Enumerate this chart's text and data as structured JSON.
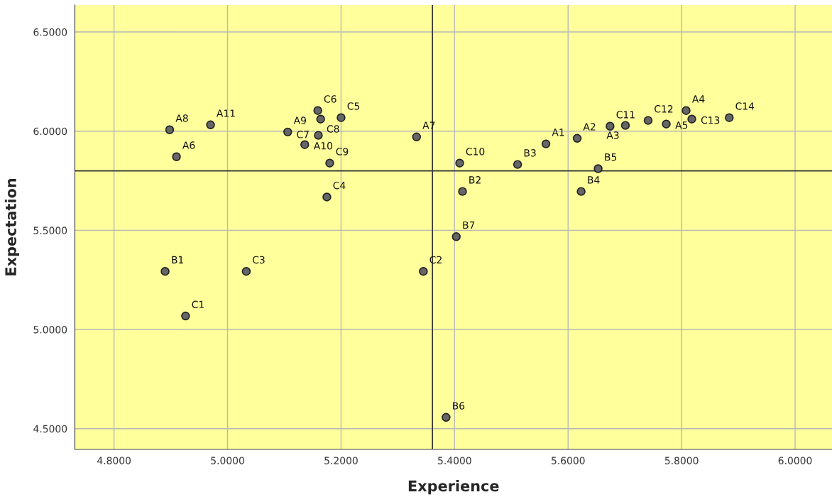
{
  "chart_data": {
    "type": "scatter",
    "xlabel": "Experience",
    "ylabel": "Expectation",
    "xlim": [
      4.731,
      6.065
    ],
    "ylim": [
      4.396,
      6.636
    ],
    "xticks": [
      {
        "value": 4.8,
        "label": "4.8000"
      },
      {
        "value": 5.0,
        "label": "5.0000"
      },
      {
        "value": 5.2,
        "label": "5.2000"
      },
      {
        "value": 5.4,
        "label": "5.4000"
      },
      {
        "value": 5.6,
        "label": "5.6000"
      },
      {
        "value": 5.8,
        "label": "5.8000"
      },
      {
        "value": 6.0,
        "label": "6.0000"
      }
    ],
    "yticks": [
      {
        "value": 4.5,
        "label": "4.5000"
      },
      {
        "value": 5.0,
        "label": "5.0000"
      },
      {
        "value": 5.5,
        "label": "5.5000"
      },
      {
        "value": 6.0,
        "label": "6.0000"
      },
      {
        "value": 6.5,
        "label": "6.5000"
      }
    ],
    "grid": true,
    "marker": "circle",
    "legend": false,
    "series": [
      {
        "color": "#666666",
        "x": [
          4.898,
          4.91,
          4.97,
          4.89,
          4.926,
          5.033,
          5.106,
          5.136,
          5.159,
          5.164,
          5.2,
          5.16,
          5.18,
          5.175,
          5.333,
          5.345,
          5.385,
          5.403,
          5.414,
          5.409,
          5.511,
          5.561,
          5.616,
          5.623,
          5.653,
          5.674,
          5.701,
          5.741,
          5.773,
          5.808,
          5.818,
          5.884
        ],
        "values": [
          6.007,
          5.871,
          6.032,
          5.293,
          5.068,
          5.293,
          5.996,
          5.932,
          6.104,
          6.061,
          6.068,
          5.979,
          5.839,
          5.668,
          5.971,
          5.293,
          4.557,
          5.468,
          5.696,
          5.839,
          5.832,
          5.936,
          5.964,
          5.696,
          5.811,
          6.025,
          6.029,
          6.054,
          6.036,
          6.104,
          6.061,
          6.068
        ]
      }
    ],
    "annotations": [
      {
        "text": "A8",
        "x": 4.898,
        "y": 6.007
      },
      {
        "text": "A6",
        "x": 4.91,
        "y": 5.871
      },
      {
        "text": "A11",
        "x": 4.97,
        "y": 6.032
      },
      {
        "text": "B1",
        "x": 4.89,
        "y": 5.293
      },
      {
        "text": "C1",
        "x": 4.926,
        "y": 5.068
      },
      {
        "text": "C3",
        "x": 5.033,
        "y": 5.293
      },
      {
        "text": "A9",
        "x": 5.106,
        "y": 5.996
      },
      {
        "text": "A10",
        "x": 5.136,
        "y": 5.932
      },
      {
        "text": "C6",
        "x": 5.159,
        "y": 6.104
      },
      {
        "text": "C8",
        "x": 5.164,
        "y": 6.061
      },
      {
        "text": "C5",
        "x": 5.2,
        "y": 6.068
      },
      {
        "text": "C7",
        "x": 5.16,
        "y": 5.979
      },
      {
        "text": "C9",
        "x": 5.18,
        "y": 5.839
      },
      {
        "text": "C4",
        "x": 5.175,
        "y": 5.668
      },
      {
        "text": "A7",
        "x": 5.333,
        "y": 5.971
      },
      {
        "text": "C2",
        "x": 5.345,
        "y": 5.293
      },
      {
        "text": "B6",
        "x": 5.385,
        "y": 4.557
      },
      {
        "text": "B7",
        "x": 5.403,
        "y": 5.468
      },
      {
        "text": "B2",
        "x": 5.414,
        "y": 5.696
      },
      {
        "text": "C10",
        "x": 5.409,
        "y": 5.839
      },
      {
        "text": "B3",
        "x": 5.511,
        "y": 5.832
      },
      {
        "text": "A1",
        "x": 5.561,
        "y": 5.936
      },
      {
        "text": "A2",
        "x": 5.616,
        "y": 5.964
      },
      {
        "text": "B4",
        "x": 5.623,
        "y": 5.696
      },
      {
        "text": "B5",
        "x": 5.653,
        "y": 5.811
      },
      {
        "text": "C11",
        "x": 5.674,
        "y": 6.025
      },
      {
        "text": "A3",
        "x": 5.701,
        "y": 6.029
      },
      {
        "text": "C12",
        "x": 5.741,
        "y": 6.054
      },
      {
        "text": "A5",
        "x": 5.773,
        "y": 6.036
      },
      {
        "text": "A4",
        "x": 5.808,
        "y": 6.104
      },
      {
        "text": "C13",
        "x": 5.818,
        "y": 6.061
      },
      {
        "text": "C14",
        "x": 5.884,
        "y": 6.068
      }
    ],
    "ref_lines": [
      {
        "axis": "x",
        "value": 5.361,
        "color": "#333333"
      },
      {
        "axis": "y",
        "value": 5.8,
        "color": "#333333"
      }
    ]
  }
}
